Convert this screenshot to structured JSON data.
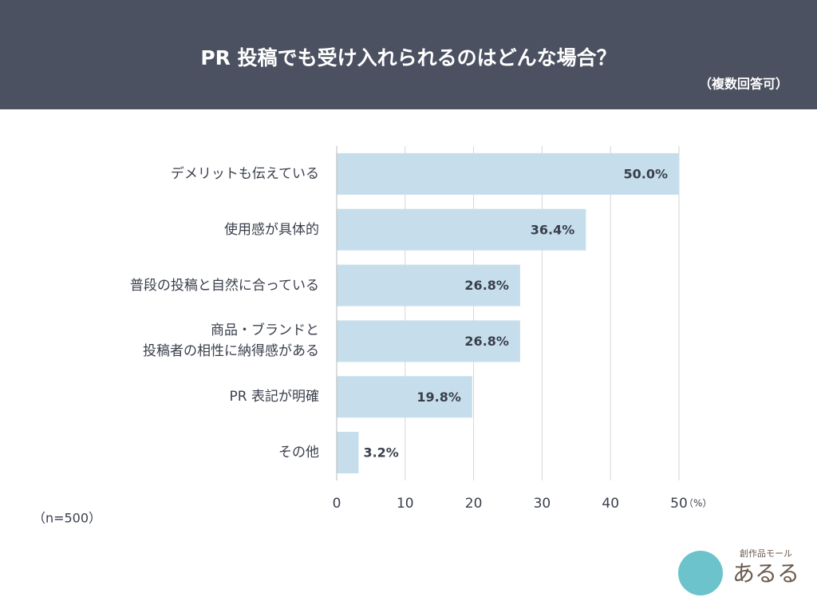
{
  "chart_data": {
    "type": "hbar",
    "title": "PR 投稿でも受け入れられるのはどんな場合？",
    "subtitle": "（複数回答可）",
    "categories": [
      "デメリットも伝えている",
      "使用感が具体的",
      "普段の投稿と自然に合っている",
      "商品・ブランドと\n投稿者の相性に納得感がある",
      "PR 表記が明確",
      "その他"
    ],
    "values": [
      50.0,
      36.4,
      26.8,
      26.8,
      19.8,
      3.2
    ],
    "value_labels": [
      "50.0%",
      "36.4%",
      "26.8%",
      "26.8%",
      "19.8%",
      "3.2%"
    ],
    "color": "#c6deec",
    "xlim": [
      0,
      50
    ],
    "xticks": [
      0,
      10,
      20,
      30,
      40,
      50
    ],
    "x_unit": "（%）",
    "grid": true,
    "note": "（n=500）",
    "logo_caption": "創作品モール",
    "logo_text": "あるる"
  }
}
